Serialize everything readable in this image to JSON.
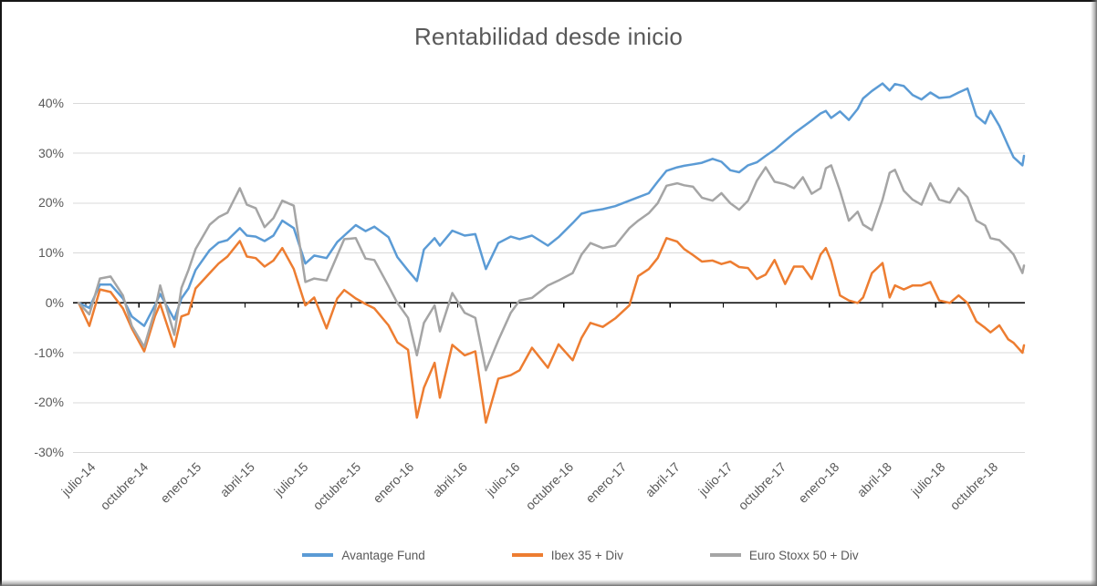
{
  "title": "Rentabilidad desde inicio",
  "colors": {
    "accent_blue": "#5B9BD5",
    "accent_orange": "#ED7D31",
    "accent_gray": "#A5A5A5",
    "text": "#595959",
    "gridline": "#D9D9D9",
    "zero_axis": "#000000",
    "background": "#FFFFFF"
  },
  "chart_data": {
    "type": "line",
    "title": "Rentabilidad desde inicio",
    "xlabel": "",
    "ylabel": "",
    "x_unit": "months since julio-2014",
    "grid": "horizontal",
    "legend_position": "bottom",
    "ylim": [
      -30,
      45
    ],
    "y_axis": {
      "tick_labels": [
        "40%",
        "30%",
        "20%",
        "10%",
        "0%",
        "-10%",
        "-20%",
        "-30%"
      ],
      "tick_values": [
        40,
        30,
        20,
        10,
        0,
        -10,
        -20,
        -30
      ]
    },
    "x_axis": {
      "tick_labels": [
        "julio-14",
        "octubre-14",
        "enero-15",
        "abril-15",
        "julio-15",
        "octubre-15",
        "enero-16",
        "abril-16",
        "julio-16",
        "octubre-16",
        "enero-17",
        "abril-17",
        "julio-17",
        "octubre-17",
        "enero-18",
        "abril-18",
        "julio-18",
        "octubre-18"
      ],
      "tick_months": [
        0,
        3,
        6,
        9,
        12,
        15,
        18,
        21,
        24,
        27,
        30,
        33,
        36,
        39,
        42,
        45,
        48,
        51
      ]
    },
    "x_months": [
      -0.4,
      0.2,
      0.8,
      1.4,
      2.1,
      2.6,
      3.3,
      3.9,
      4.2,
      5.0,
      5.4,
      5.8,
      6.2,
      7.0,
      7.5,
      8.0,
      8.7,
      9.1,
      9.6,
      10.1,
      10.6,
      11.1,
      11.75,
      12.4,
      12.9,
      13.6,
      14.2,
      14.6,
      15.25,
      15.8,
      16.3,
      17.1,
      17.6,
      18.2,
      18.7,
      19.1,
      19.7,
      20.0,
      20.7,
      21.4,
      22.0,
      22.6,
      23.3,
      24.0,
      24.5,
      25.2,
      26.1,
      26.7,
      27.5,
      28.0,
      28.5,
      29.2,
      29.9,
      30.7,
      31.2,
      31.8,
      32.3,
      32.8,
      33.4,
      33.8,
      34.3,
      34.8,
      35.4,
      35.9,
      36.4,
      36.9,
      37.4,
      37.9,
      38.4,
      38.9,
      39.5,
      40.0,
      40.5,
      41.0,
      41.5,
      41.8,
      42.1,
      42.6,
      43.1,
      43.6,
      43.9,
      44.4,
      45.0,
      45.4,
      45.7,
      46.2,
      46.7,
      47.2,
      47.7,
      48.2,
      48.8,
      49.3,
      49.8,
      50.3,
      50.8,
      51.1,
      51.6,
      52.1,
      52.4,
      52.9,
      53.2
    ],
    "series": [
      {
        "name": "Avantage Fund",
        "color": "#5B9BD5",
        "values": [
          0,
          -1,
          3.7,
          3.7,
          0.9,
          -2.7,
          -4.6,
          -0.5,
          1.8,
          -3.3,
          0.9,
          2.9,
          6.6,
          10.6,
          12.1,
          12.6,
          15.0,
          13.5,
          13.3,
          12.4,
          13.5,
          16.5,
          15.0,
          7.9,
          9.5,
          9.0,
          12.2,
          13.5,
          15.6,
          14.4,
          15.3,
          13.2,
          9.2,
          6.5,
          4.4,
          10.7,
          13.0,
          11.5,
          14.5,
          13.5,
          13.8,
          6.8,
          12.0,
          13.3,
          12.8,
          13.5,
          11.5,
          13.2,
          16.0,
          17.9,
          18.4,
          18.8,
          19.4,
          20.5,
          21.2,
          22.0,
          24.3,
          26.5,
          27.2,
          27.5,
          27.8,
          28.1,
          28.9,
          28.3,
          26.6,
          26.2,
          27.6,
          28.2,
          29.5,
          30.7,
          32.5,
          34.0,
          35.3,
          36.6,
          38.0,
          38.5,
          37.1,
          38.4,
          36.7,
          38.9,
          41.0,
          42.5,
          44.0,
          42.6,
          43.9,
          43.5,
          41.7,
          40.8,
          42.2,
          41.1,
          41.3,
          42.2,
          43.0,
          37.5,
          36.0,
          38.5,
          35.5,
          31.5,
          29.2,
          27.6,
          29.5
        ]
      },
      {
        "name": "Ibex 35 + Div",
        "color": "#ED7D31",
        "values": [
          0,
          -4.6,
          2.7,
          2.2,
          -1.1,
          -5.1,
          -9.7,
          -2.7,
          -0.2,
          -8.8,
          -2.7,
          -2.2,
          2.9,
          6.0,
          7.9,
          9.3,
          12.4,
          9.3,
          9.0,
          7.3,
          8.5,
          11.0,
          6.8,
          -0.5,
          1.1,
          -5.1,
          0.9,
          2.6,
          0.9,
          -0.2,
          -1.1,
          -4.5,
          -7.9,
          -9.4,
          -23.0,
          -17.0,
          -12.0,
          -19.0,
          -8.4,
          -10.5,
          -9.7,
          -24.0,
          -15.2,
          -14.5,
          -13.5,
          -9.0,
          -13.0,
          -8.3,
          -11.5,
          -7.0,
          -4.0,
          -4.8,
          -3.1,
          -0.5,
          5.4,
          6.8,
          9.0,
          13.0,
          12.3,
          10.8,
          9.6,
          8.3,
          8.5,
          7.8,
          8.3,
          7.2,
          7.0,
          4.8,
          5.7,
          8.6,
          3.8,
          7.3,
          7.3,
          4.8,
          9.7,
          11.0,
          8.4,
          1.5,
          0.5,
          0.0,
          1.1,
          6.0,
          8.0,
          1.1,
          3.5,
          2.7,
          3.5,
          3.5,
          4.2,
          0.5,
          0.0,
          1.5,
          0.0,
          -3.7,
          -5.0,
          -5.9,
          -4.5,
          -7.3,
          -8.0,
          -10.0,
          -8.5
        ]
      },
      {
        "name": "Euro Stoxx 50 + Div",
        "color": "#A5A5A5",
        "values": [
          0,
          -2.3,
          4.9,
          5.3,
          1.5,
          -4.6,
          -8.8,
          -1.5,
          3.5,
          -6.4,
          3.0,
          6.6,
          10.8,
          15.7,
          17.2,
          18.1,
          23.0,
          19.7,
          19.0,
          15.2,
          17.0,
          20.5,
          19.5,
          4.2,
          4.9,
          4.5,
          9.5,
          12.8,
          13.0,
          8.9,
          8.6,
          3.4,
          0.0,
          -3.0,
          -10.5,
          -4.0,
          -0.5,
          -5.7,
          2.0,
          -2.0,
          -3.0,
          -13.5,
          -7.5,
          -2.0,
          0.5,
          1.0,
          3.5,
          4.5,
          6.0,
          9.7,
          12.0,
          11.0,
          11.5,
          15.0,
          16.5,
          18.0,
          20.0,
          23.5,
          24.0,
          23.6,
          23.3,
          21.1,
          20.5,
          22.0,
          20.0,
          18.7,
          20.5,
          24.5,
          27.2,
          24.3,
          23.8,
          23.0,
          25.2,
          21.9,
          23.0,
          27.0,
          27.6,
          22.5,
          16.5,
          18.3,
          15.7,
          14.6,
          20.7,
          26.1,
          26.7,
          22.5,
          20.7,
          19.7,
          24.0,
          20.7,
          20.1,
          23.0,
          21.2,
          16.5,
          15.5,
          13.0,
          12.6,
          10.9,
          9.7,
          6.0,
          7.5
        ]
      }
    ]
  }
}
